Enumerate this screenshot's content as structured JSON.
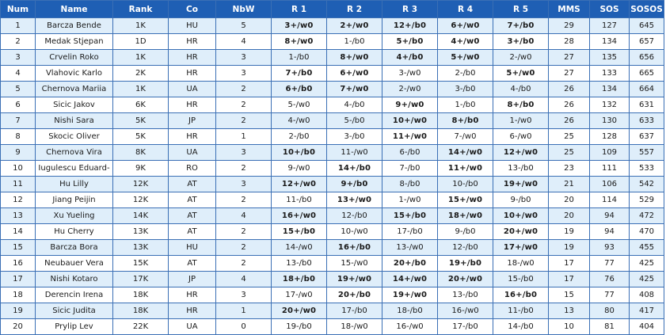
{
  "columns": [
    "Num",
    "Name",
    "Rank",
    "Co",
    "NbW",
    "R 1",
    "R 2",
    "R 3",
    "R 4",
    "R 5",
    "MMS",
    "SOS",
    "SOSOS"
  ],
  "rows": [
    {
      "num": "1",
      "name": "Barcza Bende",
      "rank": "1K",
      "co": "HU",
      "nbw": "5",
      "rounds": [
        "3+/w0",
        "2+/w0",
        "12+/b0",
        "6+/w0",
        "7+/b0"
      ],
      "mms": "29",
      "sos": "127",
      "sosos": "645"
    },
    {
      "num": "2",
      "name": "Medak Stjepan",
      "rank": "1D",
      "co": "HR",
      "nbw": "4",
      "rounds": [
        "8+/w0",
        "1-/b0",
        "5+/b0",
        "4+/w0",
        "3+/b0"
      ],
      "mms": "28",
      "sos": "134",
      "sosos": "657"
    },
    {
      "num": "3",
      "name": "Crvelin Roko",
      "rank": "1K",
      "co": "HR",
      "nbw": "3",
      "rounds": [
        "1-/b0",
        "8+/w0",
        "4+/b0",
        "5+/w0",
        "2-/w0"
      ],
      "mms": "27",
      "sos": "135",
      "sosos": "656"
    },
    {
      "num": "4",
      "name": "Vlahovic Karlo",
      "rank": "2K",
      "co": "HR",
      "nbw": "3",
      "rounds": [
        "7+/b0",
        "6+/w0",
        "3-/w0",
        "2-/b0",
        "5+/w0"
      ],
      "mms": "27",
      "sos": "133",
      "sosos": "665"
    },
    {
      "num": "5",
      "name": "Chernova Mariia",
      "rank": "1K",
      "co": "UA",
      "nbw": "2",
      "rounds": [
        "6+/b0",
        "7+/w0",
        "2-/w0",
        "3-/b0",
        "4-/b0"
      ],
      "mms": "26",
      "sos": "134",
      "sosos": "664"
    },
    {
      "num": "6",
      "name": "Sicic Jakov",
      "rank": "6K",
      "co": "HR",
      "nbw": "2",
      "rounds": [
        "5-/w0",
        "4-/b0",
        "9+/w0",
        "1-/b0",
        "8+/b0"
      ],
      "mms": "26",
      "sos": "132",
      "sosos": "631"
    },
    {
      "num": "7",
      "name": "Nishi Sara",
      "rank": "5K",
      "co": "JP",
      "nbw": "2",
      "rounds": [
        "4-/w0",
        "5-/b0",
        "10+/w0",
        "8+/b0",
        "1-/w0"
      ],
      "mms": "26",
      "sos": "130",
      "sosos": "633"
    },
    {
      "num": "8",
      "name": "Skocic Oliver",
      "rank": "5K",
      "co": "HR",
      "nbw": "1",
      "rounds": [
        "2-/b0",
        "3-/b0",
        "11+/w0",
        "7-/w0",
        "6-/w0"
      ],
      "mms": "25",
      "sos": "128",
      "sosos": "637"
    },
    {
      "num": "9",
      "name": "Chernova Vira",
      "rank": "8K",
      "co": "UA",
      "nbw": "3",
      "rounds": [
        "10+/b0",
        "11-/w0",
        "6-/b0",
        "14+/w0",
        "12+/w0"
      ],
      "mms": "25",
      "sos": "109",
      "sosos": "557"
    },
    {
      "num": "10",
      "name": "Iugulescu Eduard-",
      "rank": "9K",
      "co": "RO",
      "nbw": "2",
      "rounds": [
        "9-/w0",
        "14+/b0",
        "7-/b0",
        "11+/w0",
        "13-/b0"
      ],
      "mms": "23",
      "sos": "111",
      "sosos": "533"
    },
    {
      "num": "11",
      "name": "Hu Lilly",
      "rank": "12K",
      "co": "AT",
      "nbw": "3",
      "rounds": [
        "12+/w0",
        "9+/b0",
        "8-/b0",
        "10-/b0",
        "19+/w0"
      ],
      "mms": "21",
      "sos": "106",
      "sosos": "542"
    },
    {
      "num": "12",
      "name": "Jiang Peijin",
      "rank": "12K",
      "co": "AT",
      "nbw": "2",
      "rounds": [
        "11-/b0",
        "13+/w0",
        "1-/w0",
        "15+/w0",
        "9-/b0"
      ],
      "mms": "20",
      "sos": "114",
      "sosos": "529"
    },
    {
      "num": "13",
      "name": "Xu Yueling",
      "rank": "14K",
      "co": "AT",
      "nbw": "4",
      "rounds": [
        "16+/w0",
        "12-/b0",
        "15+/b0",
        "18+/w0",
        "10+/w0"
      ],
      "mms": "20",
      "sos": "94",
      "sosos": "472"
    },
    {
      "num": "14",
      "name": "Hu Cherry",
      "rank": "13K",
      "co": "AT",
      "nbw": "2",
      "rounds": [
        "15+/b0",
        "10-/w0",
        "17-/b0",
        "9-/b0",
        "20+/w0"
      ],
      "mms": "19",
      "sos": "94",
      "sosos": "470"
    },
    {
      "num": "15",
      "name": "Barcza Bora",
      "rank": "13K",
      "co": "HU",
      "nbw": "2",
      "rounds": [
        "14-/w0",
        "16+/b0",
        "13-/w0",
        "12-/b0",
        "17+/w0"
      ],
      "mms": "19",
      "sos": "93",
      "sosos": "455"
    },
    {
      "num": "16",
      "name": "Neubauer Vera",
      "rank": "15K",
      "co": "AT",
      "nbw": "2",
      "rounds": [
        "13-/b0",
        "15-/w0",
        "20+/b0",
        "19+/b0",
        "18-/w0"
      ],
      "mms": "17",
      "sos": "77",
      "sosos": "425"
    },
    {
      "num": "17",
      "name": "Nishi Kotaro",
      "rank": "17K",
      "co": "JP",
      "nbw": "4",
      "rounds": [
        "18+/b0",
        "19+/w0",
        "14+/w0",
        "20+/w0",
        "15-/b0"
      ],
      "mms": "17",
      "sos": "76",
      "sosos": "425"
    },
    {
      "num": "18",
      "name": "Derencin Irena",
      "rank": "18K",
      "co": "HR",
      "nbw": "3",
      "rounds": [
        "17-/w0",
        "20+/b0",
        "19+/w0",
        "13-/b0",
        "16+/b0"
      ],
      "mms": "15",
      "sos": "77",
      "sosos": "408"
    },
    {
      "num": "19",
      "name": "Sicic Judita",
      "rank": "18K",
      "co": "HR",
      "nbw": "1",
      "rounds": [
        "20+/w0",
        "17-/b0",
        "18-/b0",
        "16-/w0",
        "11-/b0"
      ],
      "mms": "13",
      "sos": "80",
      "sosos": "417"
    },
    {
      "num": "20",
      "name": "Prylip Lev",
      "rank": "22K",
      "co": "UA",
      "nbw": "0",
      "rounds": [
        "19-/b0",
        "18-/w0",
        "16-/w0",
        "17-/b0",
        "14-/b0"
      ],
      "mms": "10",
      "sos": "81",
      "sosos": "404"
    }
  ],
  "colors": {
    "header_bg": "#1f5fb4",
    "header_text": "#ffffff",
    "row_odd_bg": "#dfeefa",
    "row_even_bg": "#ffffff",
    "border": "#3a6fb5"
  }
}
